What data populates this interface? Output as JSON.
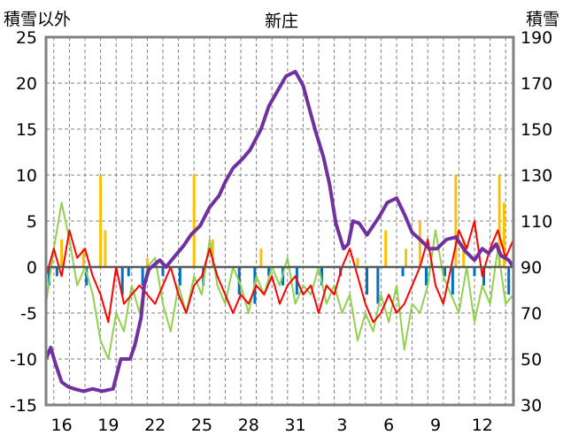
{
  "chart_data": {
    "type": "line",
    "title": "新庄",
    "left_axis_label": "積雪以外",
    "right_axis_label": "積雪",
    "x_tick_labels": [
      "16",
      "19",
      "22",
      "25",
      "28",
      "31",
      "3",
      "6",
      "9",
      "12"
    ],
    "left_axis": {
      "range": [
        -15,
        25
      ],
      "ticks": [
        25,
        20,
        15,
        10,
        5,
        0,
        -5,
        -10,
        -15
      ]
    },
    "right_axis": {
      "range": [
        30,
        190
      ],
      "ticks": [
        190,
        170,
        150,
        130,
        110,
        90,
        70,
        50,
        30
      ]
    },
    "x_range_days": [
      0,
      30
    ],
    "grid": {
      "vertical_dashed": true,
      "horizontal_dashed": true
    },
    "colors": {
      "snow_depth": "#7030a0",
      "temperature": "#ff0000",
      "light_green": "#92d050",
      "positive_bars": "#ffc000",
      "negative_bars": "#0070c0",
      "zero_line": "#595959",
      "frame": "#808080"
    },
    "series": [
      {
        "key": "snow_depth",
        "axis": "right",
        "x": [
          0,
          0.3,
          0.6,
          1,
          1.4,
          1.8,
          2.4,
          3,
          3.6,
          4.3,
          4.8,
          5.4,
          5.7,
          6.1,
          6.3,
          6.6,
          7.3,
          7.7,
          8.3,
          8.8,
          9.3,
          9.9,
          10.5,
          11.1,
          11.5,
          12,
          12.6,
          13.1,
          13.8,
          14.3,
          14.9,
          15.4,
          16,
          16.5,
          16.9,
          17.3,
          17.8,
          18.2,
          18.6,
          19.1,
          19.4,
          19.7,
          20.1,
          20.6,
          21,
          21.4,
          21.9,
          22.5,
          23,
          23.5,
          24,
          24.6,
          25.1,
          25.7,
          26.3,
          26.9,
          27.5,
          28,
          28.4,
          28.9,
          29.2,
          29.7,
          30
        ],
        "values": [
          50,
          55,
          48,
          40,
          38,
          37,
          36,
          37,
          36,
          37,
          50,
          50,
          56,
          68,
          82,
          89,
          93,
          90,
          95,
          99,
          104,
          108,
          116,
          121,
          127,
          133,
          137,
          141,
          150,
          160,
          167,
          173,
          175,
          169,
          159,
          149,
          138,
          126,
          109,
          98,
          100,
          110,
          109,
          104,
          108,
          112,
          118,
          120,
          113,
          105,
          102,
          98,
          98,
          102,
          103,
          97,
          93,
          98,
          96,
          100,
          95,
          93,
          90
        ]
      },
      {
        "key": "temperature",
        "axis": "left",
        "x": [
          0,
          0.5,
          1,
          1.5,
          2,
          2.5,
          3,
          3.5,
          4,
          4.5,
          5,
          5.5,
          6,
          6.5,
          7,
          7.5,
          8,
          8.5,
          9,
          9.5,
          10,
          10.5,
          11,
          11.5,
          12,
          12.5,
          13,
          13.5,
          14,
          14.5,
          15,
          15.5,
          16,
          16.5,
          17,
          17.5,
          18,
          18.5,
          19,
          19.5,
          20,
          20.5,
          21,
          21.5,
          22,
          22.5,
          23,
          23.5,
          24,
          24.5,
          25,
          25.5,
          26,
          26.5,
          27,
          27.5,
          28,
          28.5,
          29,
          29.5,
          30
        ],
        "values": [
          -1,
          2,
          -1,
          4,
          1,
          2,
          -1,
          -3,
          -6,
          0,
          -4,
          -3,
          -2,
          -3,
          -4,
          -2,
          0,
          -3,
          -5,
          -2,
          -1,
          2,
          -1,
          -3,
          -5,
          -3,
          -4,
          -2,
          -3,
          -1,
          -4,
          -2,
          -1,
          -3,
          -2,
          -5,
          -2,
          -3,
          0,
          2,
          -1,
          -4,
          -6,
          -5,
          -3,
          -5,
          -4,
          -2,
          0,
          3,
          -2,
          -4,
          0,
          4,
          2,
          5,
          -1,
          2,
          4,
          1,
          3
        ]
      },
      {
        "key": "light_green",
        "axis": "left",
        "x": [
          0,
          0.5,
          1,
          1.5,
          2,
          2.5,
          3,
          3.5,
          4,
          4.5,
          5,
          5.5,
          6,
          6.5,
          7,
          7.5,
          8,
          8.5,
          9,
          9.5,
          10,
          10.5,
          11,
          11.5,
          12,
          12.5,
          13,
          13.5,
          14,
          14.5,
          15,
          15.5,
          16,
          16.5,
          17,
          17.5,
          18,
          18.5,
          19,
          19.5,
          20,
          20.5,
          21,
          21.5,
          22,
          22.5,
          23,
          23.5,
          24,
          24.5,
          25,
          25.5,
          26,
          26.5,
          27,
          27.5,
          28,
          28.5,
          29,
          29.5,
          30
        ],
        "values": [
          -4,
          2,
          7,
          3,
          -2,
          0,
          -3,
          -8,
          -10,
          -5,
          -7,
          -2,
          -5,
          0,
          1,
          -4,
          -7,
          -2,
          -5,
          -1,
          -3,
          3,
          -2,
          -4,
          0,
          -2,
          -5,
          -1,
          -3,
          0,
          -2,
          1,
          -4,
          -2,
          -3,
          0,
          -4,
          -2,
          -5,
          -3,
          -8,
          -5,
          -7,
          -3,
          -6,
          -2,
          -9,
          -4,
          -5,
          -2,
          4,
          -1,
          -3,
          -5,
          0,
          -6,
          -2,
          -4,
          2,
          -4,
          -3
        ]
      },
      {
        "key": "positive_bars",
        "axis": "left",
        "x": [
          1,
          2.4,
          3.5,
          3.8,
          6.5,
          9.5,
          10.7,
          13.8,
          20,
          21.8,
          23.1,
          24,
          26.3,
          26.8,
          29.1,
          29.4
        ],
        "values": [
          3,
          2,
          10,
          4,
          1,
          10,
          3,
          2,
          1,
          4,
          2,
          5,
          10,
          3,
          10,
          7
        ]
      },
      {
        "key": "negative_bars",
        "axis": "left",
        "x": [
          0.2,
          0.7,
          2.6,
          4.9,
          5.3,
          6.2,
          7.5,
          8.6,
          10.1,
          12.4,
          13.4,
          14.3,
          15.2,
          16.1,
          17.7,
          18.9,
          20.6,
          21.3,
          22.9,
          24.4,
          25.6,
          26.1,
          27.5,
          28.1,
          29.7
        ],
        "values": [
          -2,
          -1,
          -2,
          -3,
          -1,
          -2,
          -1,
          -2,
          -2,
          -3,
          -4,
          -1,
          -2,
          -3,
          -2,
          -1,
          -3,
          -4,
          -1,
          -2,
          -1,
          -3,
          -1,
          -2,
          -3
        ]
      }
    ]
  }
}
